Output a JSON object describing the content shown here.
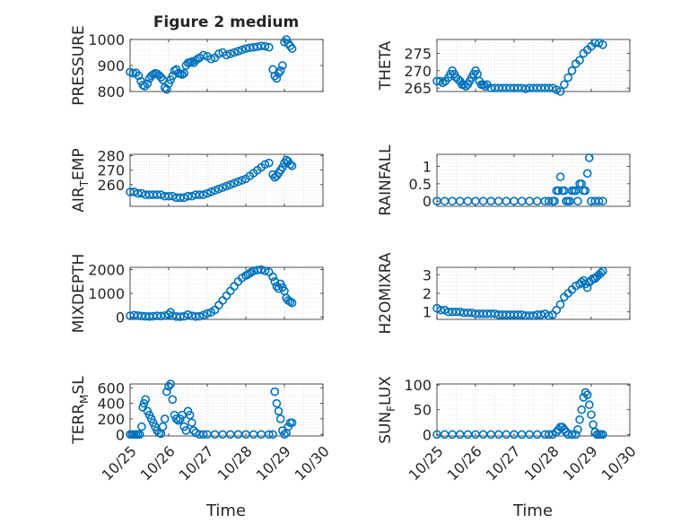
{
  "figure": {
    "title": "Figure 2 medium",
    "xlabel": "Time",
    "x_ticks": [
      "10/25",
      "10/26",
      "10/27",
      "10/28",
      "10/29",
      "10/30"
    ]
  },
  "chart_data": [
    {
      "type": "scatter",
      "ylabel": "PRESSURE",
      "ylim": [
        800,
        1000
      ],
      "y_ticks": [
        800,
        900,
        1000
      ],
      "xlim": [
        0,
        5
      ],
      "grid": true,
      "x": [
        0.0,
        0.08,
        0.15,
        0.22,
        0.28,
        0.33,
        0.38,
        0.45,
        0.5,
        0.55,
        0.6,
        0.65,
        0.7,
        0.75,
        0.8,
        0.85,
        0.9,
        0.95,
        1.0,
        1.05,
        1.1,
        1.15,
        1.2,
        1.25,
        1.3,
        1.35,
        1.4,
        1.45,
        1.5,
        1.55,
        1.6,
        1.65,
        1.7,
        1.75,
        1.8,
        1.9,
        2.0,
        2.1,
        2.2,
        2.3,
        2.4,
        2.5,
        2.6,
        2.7,
        2.8,
        2.9,
        3.0,
        3.1,
        3.2,
        3.3,
        3.4,
        3.5,
        3.6,
        3.7,
        3.75,
        3.8,
        3.85,
        3.9,
        3.95,
        4.0,
        4.05,
        4.1,
        4.15,
        4.2
      ],
      "y": [
        875,
        870,
        872,
        860,
        840,
        825,
        820,
        830,
        850,
        860,
        865,
        870,
        868,
        862,
        855,
        845,
        815,
        808,
        830,
        845,
        860,
        880,
        885,
        870,
        868,
        865,
        870,
        900,
        910,
        912,
        915,
        910,
        920,
        925,
        930,
        940,
        935,
        925,
        930,
        945,
        950,
        940,
        945,
        950,
        955,
        960,
        965,
        968,
        970,
        972,
        975,
        974,
        970,
        885,
        860,
        850,
        870,
        880,
        900,
        990,
        1000,
        985,
        975,
        965
      ]
    },
    {
      "type": "scatter",
      "ylabel": "THETA",
      "ylim": [
        264,
        279
      ],
      "y_ticks": [
        265,
        270,
        275
      ],
      "xlim": [
        0,
        5
      ],
      "grid": true,
      "x": [
        0.0,
        0.08,
        0.15,
        0.22,
        0.3,
        0.35,
        0.4,
        0.45,
        0.5,
        0.55,
        0.6,
        0.65,
        0.7,
        0.75,
        0.8,
        0.85,
        0.9,
        0.95,
        1.0,
        1.05,
        1.1,
        1.15,
        1.2,
        1.25,
        1.3,
        1.4,
        1.5,
        1.6,
        1.7,
        1.8,
        1.9,
        2.0,
        2.1,
        2.2,
        2.3,
        2.4,
        2.5,
        2.6,
        2.7,
        2.8,
        2.9,
        3.0,
        3.1,
        3.2,
        3.3,
        3.4,
        3.5,
        3.6,
        3.7,
        3.8,
        3.9,
        4.0,
        4.1,
        4.2,
        4.3
      ],
      "y": [
        267,
        267,
        266.5,
        267,
        268,
        269,
        270,
        269,
        268,
        267.5,
        267,
        266,
        266,
        265.5,
        266,
        267,
        268,
        269,
        270,
        269,
        267,
        266,
        266,
        265.5,
        266,
        265,
        265,
        265,
        265,
        265,
        265,
        265,
        265,
        265,
        264.8,
        265,
        265,
        265,
        265,
        265,
        265,
        265,
        264.5,
        264,
        266,
        268,
        270,
        272,
        273,
        275,
        276,
        277,
        278,
        278,
        277.5
      ]
    },
    {
      "type": "scatter",
      "ylabel": "AIR_TEMP",
      "ylim": [
        245,
        281
      ],
      "y_ticks": [
        260,
        270,
        280
      ],
      "xlim": [
        0,
        5
      ],
      "grid": true,
      "x": [
        0.0,
        0.1,
        0.2,
        0.3,
        0.4,
        0.5,
        0.6,
        0.7,
        0.8,
        0.9,
        1.0,
        1.1,
        1.2,
        1.3,
        1.4,
        1.5,
        1.6,
        1.7,
        1.8,
        1.9,
        2.0,
        2.1,
        2.2,
        2.3,
        2.4,
        2.5,
        2.6,
        2.7,
        2.8,
        2.9,
        3.0,
        3.1,
        3.2,
        3.3,
        3.4,
        3.5,
        3.6,
        3.7,
        3.75,
        3.8,
        3.85,
        3.9,
        3.95,
        4.0,
        4.05,
        4.1,
        4.15,
        4.2
      ],
      "y": [
        255,
        255,
        254,
        254,
        253,
        253,
        253,
        253,
        253,
        252,
        252,
        252,
        251,
        251,
        251,
        252,
        252,
        253,
        253,
        253,
        254,
        255,
        256,
        257,
        258,
        259,
        260,
        261,
        262,
        263,
        264,
        266,
        268,
        270,
        272,
        274,
        275,
        267,
        265,
        266,
        268,
        270,
        272,
        275,
        277,
        276,
        274,
        273
      ]
    },
    {
      "type": "scatter",
      "ylabel": "RAINFALL",
      "ylim": [
        -0.15,
        1.35
      ],
      "y_ticks": [
        0,
        0.5,
        1
      ],
      "xlim": [
        0,
        5
      ],
      "grid": true,
      "x": [
        0.0,
        0.2,
        0.4,
        0.6,
        0.8,
        1.0,
        1.2,
        1.4,
        1.6,
        1.8,
        2.0,
        2.2,
        2.4,
        2.6,
        2.8,
        2.9,
        3.0,
        3.05,
        3.1,
        3.15,
        3.2,
        3.25,
        3.3,
        3.35,
        3.4,
        3.45,
        3.5,
        3.55,
        3.6,
        3.65,
        3.7,
        3.75,
        3.8,
        3.85,
        3.9,
        3.95,
        4.0,
        4.1,
        4.2,
        4.3
      ],
      "y": [
        0,
        0,
        0,
        0,
        0,
        0,
        0,
        0,
        0,
        0,
        0,
        0,
        0,
        0,
        0,
        0,
        0,
        0,
        0.3,
        0.3,
        0.7,
        0.3,
        0.3,
        0,
        0,
        0,
        0.3,
        0.3,
        0.3,
        0,
        0.5,
        0.5,
        0.3,
        0.3,
        0.8,
        1.25,
        0,
        0,
        0,
        0
      ]
    },
    {
      "type": "scatter",
      "ylabel": "MIXDEPTH",
      "ylim": [
        -100,
        2100
      ],
      "y_ticks": [
        0,
        1000,
        2000
      ],
      "xlim": [
        0,
        5
      ],
      "grid": true,
      "x": [
        0.0,
        0.1,
        0.2,
        0.3,
        0.4,
        0.5,
        0.6,
        0.7,
        0.8,
        0.9,
        1.0,
        1.05,
        1.1,
        1.2,
        1.3,
        1.4,
        1.5,
        1.6,
        1.7,
        1.8,
        1.9,
        2.0,
        2.1,
        2.2,
        2.3,
        2.4,
        2.5,
        2.6,
        2.7,
        2.8,
        2.9,
        3.0,
        3.05,
        3.1,
        3.15,
        3.2,
        3.3,
        3.4,
        3.5,
        3.6,
        3.7,
        3.75,
        3.8,
        3.85,
        3.9,
        3.95,
        4.0,
        4.05,
        4.1,
        4.15,
        4.2
      ],
      "y": [
        50,
        80,
        60,
        40,
        30,
        20,
        30,
        50,
        40,
        60,
        100,
        200,
        50,
        20,
        10,
        30,
        100,
        50,
        20,
        30,
        80,
        150,
        200,
        300,
        500,
        700,
        900,
        1100,
        1300,
        1500,
        1650,
        1750,
        1800,
        1850,
        1900,
        1950,
        1980,
        2000,
        1950,
        1900,
        1700,
        1500,
        1300,
        1200,
        1400,
        1250,
        1100,
        800,
        700,
        650,
        600
      ]
    },
    {
      "type": "scatter",
      "ylabel": "H2OMIXRA",
      "ylim": [
        0.6,
        3.4
      ],
      "y_ticks": [
        1,
        2,
        3
      ],
      "xlim": [
        0,
        5
      ],
      "grid": true,
      "x": [
        0.0,
        0.1,
        0.2,
        0.3,
        0.4,
        0.5,
        0.6,
        0.7,
        0.8,
        0.9,
        1.0,
        1.1,
        1.2,
        1.3,
        1.4,
        1.5,
        1.6,
        1.7,
        1.8,
        1.9,
        2.0,
        2.1,
        2.2,
        2.3,
        2.4,
        2.5,
        2.6,
        2.7,
        2.8,
        2.9,
        3.0,
        3.1,
        3.2,
        3.3,
        3.4,
        3.5,
        3.6,
        3.7,
        3.75,
        3.8,
        3.85,
        3.9,
        3.95,
        4.0,
        4.05,
        4.1,
        4.15,
        4.2,
        4.25,
        4.3
      ],
      "y": [
        1.2,
        1.1,
        1.1,
        1.0,
        1.0,
        1.0,
        1.0,
        0.95,
        0.95,
        0.95,
        0.9,
        0.9,
        0.9,
        0.9,
        0.9,
        0.9,
        0.85,
        0.85,
        0.85,
        0.85,
        0.85,
        0.85,
        0.85,
        0.8,
        0.8,
        0.8,
        0.85,
        0.85,
        0.9,
        0.8,
        0.85,
        1.1,
        1.4,
        1.8,
        2.0,
        2.2,
        2.4,
        2.5,
        2.6,
        2.7,
        2.5,
        2.3,
        2.6,
        2.7,
        2.8,
        2.8,
        2.9,
        3.0,
        3.1,
        3.2
      ]
    },
    {
      "type": "scatter",
      "ylabel": "TERR_MSL",
      "ylim": [
        -20,
        650
      ],
      "y_ticks": [
        0,
        200,
        400,
        600
      ],
      "xlim": [
        0,
        5
      ],
      "grid": true,
      "x": [
        0.0,
        0.05,
        0.1,
        0.15,
        0.2,
        0.25,
        0.3,
        0.33,
        0.36,
        0.4,
        0.45,
        0.5,
        0.55,
        0.6,
        0.65,
        0.7,
        0.75,
        0.8,
        0.85,
        0.9,
        0.95,
        1.0,
        1.05,
        1.1,
        1.15,
        1.2,
        1.25,
        1.3,
        1.35,
        1.4,
        1.45,
        1.5,
        1.55,
        1.6,
        1.65,
        1.7,
        1.8,
        1.9,
        2.0,
        2.2,
        2.4,
        2.6,
        2.8,
        3.0,
        3.2,
        3.4,
        3.6,
        3.7,
        3.75,
        3.8,
        3.85,
        3.9,
        3.95,
        4.0,
        4.05,
        4.1,
        4.15,
        4.2
      ],
      "y": [
        0,
        0,
        0,
        0,
        0,
        0,
        100,
        350,
        400,
        450,
        300,
        250,
        200,
        150,
        100,
        50,
        20,
        10,
        100,
        200,
        550,
        620,
        650,
        450,
        250,
        200,
        180,
        200,
        250,
        100,
        50,
        300,
        250,
        150,
        50,
        20,
        0,
        0,
        0,
        0,
        0,
        0,
        0,
        0,
        0,
        0,
        0,
        0,
        550,
        400,
        300,
        200,
        50,
        0,
        20,
        100,
        150,
        150
      ]
    },
    {
      "type": "scatter",
      "ylabel": "SUN_FLUX",
      "ylim": [
        -3,
        102
      ],
      "y_ticks": [
        0,
        50,
        100
      ],
      "xlim": [
        0,
        5
      ],
      "grid": true,
      "x": [
        0.0,
        0.2,
        0.4,
        0.6,
        0.8,
        1.0,
        1.2,
        1.4,
        1.6,
        1.8,
        2.0,
        2.2,
        2.4,
        2.6,
        2.8,
        2.9,
        3.0,
        3.1,
        3.15,
        3.2,
        3.25,
        3.3,
        3.35,
        3.4,
        3.5,
        3.6,
        3.65,
        3.7,
        3.75,
        3.8,
        3.85,
        3.9,
        3.95,
        4.0,
        4.05,
        4.1,
        4.15,
        4.2,
        4.25,
        4.3
      ],
      "y": [
        0,
        0,
        0,
        0,
        0,
        0,
        0,
        0,
        0,
        0,
        0,
        0,
        0,
        0,
        0,
        0,
        0,
        5,
        10,
        15,
        15,
        10,
        5,
        0,
        0,
        0,
        10,
        30,
        50,
        75,
        85,
        80,
        60,
        40,
        20,
        5,
        0,
        0,
        0,
        0
      ]
    }
  ]
}
